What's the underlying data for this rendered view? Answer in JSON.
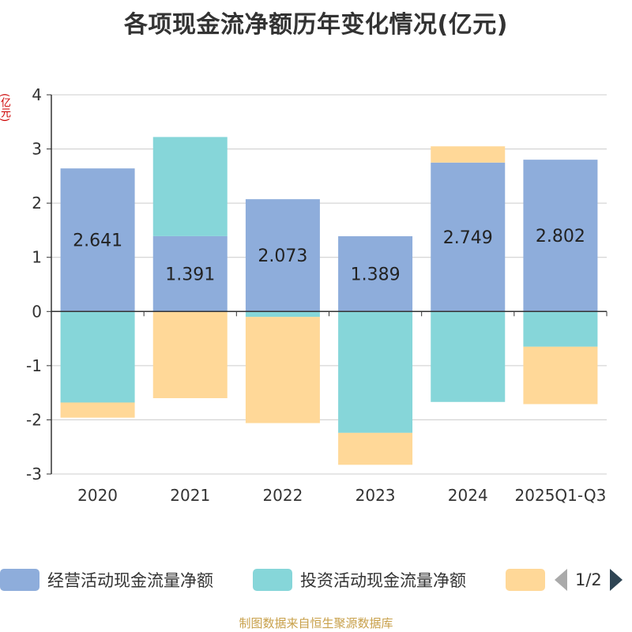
{
  "title": "各项现金流净额历年变化情况(亿元)",
  "y_unit": "(亿元)",
  "legend": {
    "items": [
      {
        "label": "经营活动现金流量净额",
        "color": "#8eaddb"
      },
      {
        "label": "投资活动现金流量净额",
        "color": "#86d6d9"
      },
      {
        "label": "",
        "color": "#ffd898"
      }
    ],
    "page": "1/2"
  },
  "source": "制图数据来自恒生聚源数据库",
  "chart_data": {
    "type": "bar",
    "stacked": true,
    "categories": [
      "2020",
      "2021",
      "2022",
      "2023",
      "2024",
      "2025Q1-Q3"
    ],
    "series": [
      {
        "name": "经营活动现金流量净额",
        "color": "#8eaddb",
        "values": [
          2.641,
          1.391,
          2.073,
          1.389,
          2.749,
          2.802
        ],
        "labels": [
          "2.641",
          "1.391",
          "2.073",
          "1.389",
          "2.749",
          "2.802"
        ]
      },
      {
        "name": "投资活动现金流量净额",
        "color": "#86d6d9",
        "values": [
          -1.68,
          1.83,
          -0.1,
          -2.24,
          -1.67,
          -0.65
        ]
      },
      {
        "color": "#ffd898",
        "values": [
          -0.28,
          -1.6,
          -1.96,
          -0.59,
          0.3,
          -1.06
        ]
      }
    ],
    "ylim": [
      -3,
      4
    ],
    "yticks": [
      4,
      3,
      2,
      1,
      0,
      -1,
      -2,
      -3
    ],
    "grid": true
  }
}
